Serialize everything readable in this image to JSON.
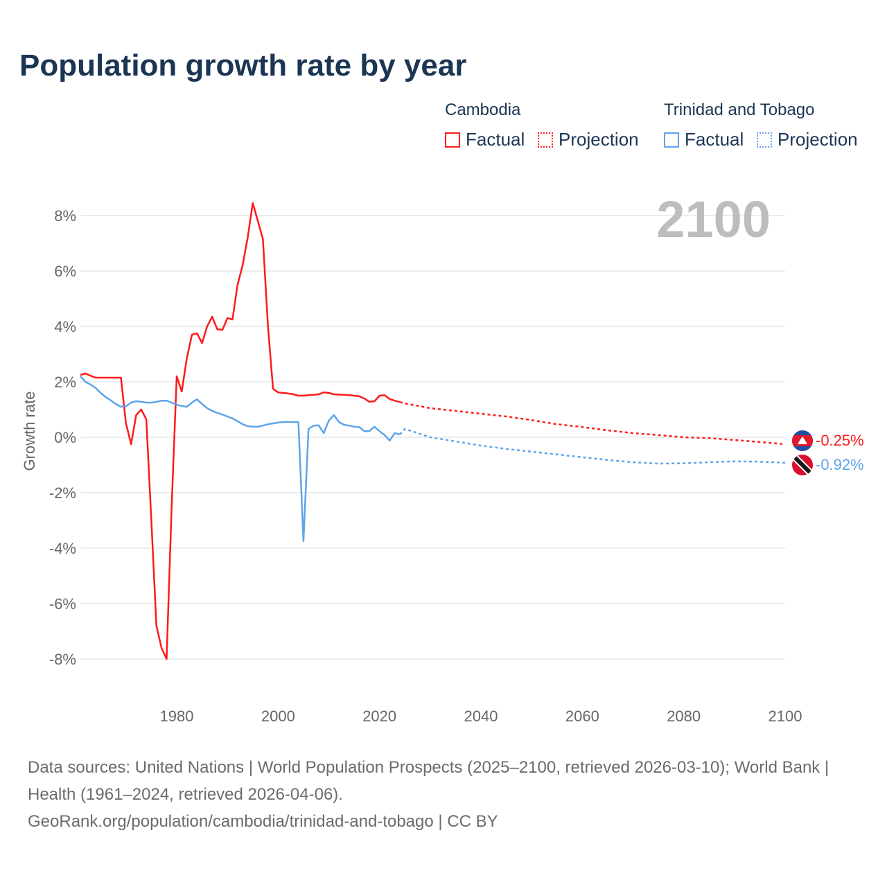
{
  "title": "Population growth rate by year",
  "legend": {
    "groups": [
      {
        "name": "Cambodia",
        "color": "#ff1a1a",
        "factual": "Factual",
        "projection": "Projection"
      },
      {
        "name": "Trinidad and Tobago",
        "color": "#5ea4ea",
        "factual": "Factual",
        "projection": "Projection"
      }
    ]
  },
  "year_watermark": "2100",
  "footer": {
    "line1": "Data sources: United Nations | World Population Prospects (2025–2100, retrieved 2026-03-10); World Bank | Health (1961–2024, retrieved 2026-04-06).",
    "line2": "GeoRank.org/population/cambodia/trinidad-and-tobago | CC BY"
  },
  "chart_data": {
    "type": "line",
    "title": "Population growth rate by year",
    "xlabel": "",
    "ylabel": "Growth rate",
    "xlim": [
      1961,
      2100
    ],
    "ylim": [
      -9,
      9
    ],
    "xticks": [
      "1980",
      "2000",
      "2020",
      "2040",
      "2060",
      "2080",
      "2100"
    ],
    "yticks": [
      "8%",
      "6%",
      "4%",
      "2%",
      "0%",
      "-2%",
      "-4%",
      "-6%",
      "-8%"
    ],
    "grid": true,
    "series": [
      {
        "name": "Cambodia",
        "color": "#ff1a1a",
        "end_label": "-0.25%",
        "factual": {
          "x": [
            1961,
            1962,
            1963,
            1964,
            1965,
            1966,
            1967,
            1968,
            1969,
            1970,
            1971,
            1972,
            1973,
            1974,
            1975,
            1976,
            1977,
            1978,
            1979,
            1980,
            1981,
            1982,
            1983,
            1984,
            1985,
            1986,
            1987,
            1988,
            1989,
            1990,
            1991,
            1992,
            1993,
            1994,
            1995,
            1996,
            1997,
            1998,
            1999,
            2000,
            2001,
            2002,
            2003,
            2004,
            2005,
            2006,
            2007,
            2008,
            2009,
            2010,
            2011,
            2012,
            2013,
            2014,
            2015,
            2016,
            2017,
            2018,
            2019,
            2020,
            2021,
            2022,
            2023,
            2024
          ],
          "y": [
            2.25,
            2.3,
            2.22,
            2.15,
            2.15,
            2.15,
            2.15,
            2.15,
            2.15,
            0.5,
            -0.25,
            0.8,
            1.0,
            0.65,
            -3.0,
            -6.8,
            -7.6,
            -8.0,
            -2.5,
            2.2,
            1.65,
            2.85,
            3.7,
            3.75,
            3.4,
            4.0,
            4.35,
            3.9,
            3.87,
            4.3,
            4.25,
            5.5,
            6.2,
            7.2,
            8.45,
            7.8,
            7.15,
            4.0,
            1.75,
            1.62,
            1.6,
            1.58,
            1.55,
            1.5,
            1.5,
            1.52,
            1.53,
            1.55,
            1.62,
            1.6,
            1.55,
            1.54,
            1.53,
            1.52,
            1.5,
            1.48,
            1.4,
            1.28,
            1.3,
            1.5,
            1.52,
            1.38,
            1.32,
            1.27
          ]
        },
        "projection": {
          "x": [
            2024,
            2025,
            2030,
            2035,
            2040,
            2045,
            2050,
            2055,
            2060,
            2065,
            2070,
            2075,
            2080,
            2085,
            2090,
            2095,
            2100
          ],
          "y": [
            1.27,
            1.22,
            1.05,
            0.95,
            0.85,
            0.75,
            0.62,
            0.47,
            0.37,
            0.25,
            0.15,
            0.08,
            0.0,
            -0.03,
            -0.1,
            -0.17,
            -0.25
          ]
        }
      },
      {
        "name": "Trinidad and Tobago",
        "color": "#5ea4ea",
        "end_label": "-0.92%",
        "factual": {
          "x": [
            1961,
            1962,
            1963,
            1964,
            1965,
            1966,
            1967,
            1968,
            1969,
            1970,
            1971,
            1972,
            1973,
            1974,
            1975,
            1976,
            1977,
            1978,
            1979,
            1980,
            1981,
            1982,
            1983,
            1984,
            1985,
            1986,
            1987,
            1988,
            1989,
            1990,
            1991,
            1992,
            1993,
            1994,
            1995,
            1996,
            1997,
            1998,
            1999,
            2000,
            2001,
            2002,
            2003,
            2004,
            2005,
            2006,
            2007,
            2008,
            2009,
            2010,
            2011,
            2012,
            2013,
            2014,
            2015,
            2016,
            2017,
            2018,
            2019,
            2020,
            2021,
            2022,
            2023,
            2024
          ],
          "y": [
            2.2,
            2.0,
            1.9,
            1.78,
            1.6,
            1.45,
            1.33,
            1.2,
            1.1,
            1.12,
            1.25,
            1.3,
            1.28,
            1.25,
            1.25,
            1.28,
            1.32,
            1.32,
            1.25,
            1.17,
            1.13,
            1.1,
            1.25,
            1.37,
            1.2,
            1.05,
            0.95,
            0.88,
            0.82,
            0.75,
            0.68,
            0.58,
            0.47,
            0.4,
            0.38,
            0.38,
            0.42,
            0.47,
            0.5,
            0.53,
            0.55,
            0.55,
            0.55,
            0.55,
            -3.75,
            0.3,
            0.42,
            0.43,
            0.15,
            0.6,
            0.8,
            0.55,
            0.45,
            0.42,
            0.38,
            0.37,
            0.22,
            0.22,
            0.38,
            0.22,
            0.08,
            -0.12,
            0.15,
            0.1
          ]
        },
        "projection": {
          "x": [
            2024,
            2025,
            2030,
            2035,
            2040,
            2045,
            2050,
            2055,
            2060,
            2065,
            2070,
            2075,
            2080,
            2085,
            2090,
            2095,
            2100
          ],
          "y": [
            0.1,
            0.3,
            0.0,
            -0.15,
            -0.3,
            -0.42,
            -0.52,
            -0.62,
            -0.72,
            -0.82,
            -0.9,
            -0.95,
            -0.94,
            -0.9,
            -0.87,
            -0.88,
            -0.92
          ]
        }
      }
    ]
  }
}
